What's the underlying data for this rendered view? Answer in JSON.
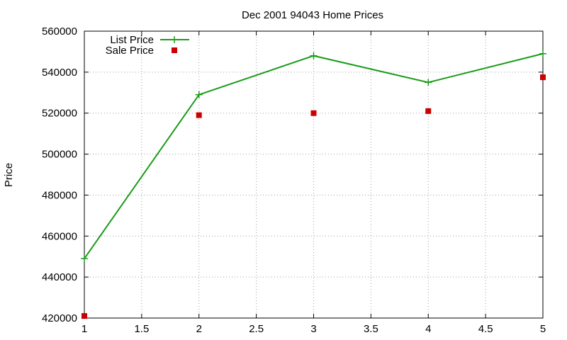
{
  "chart_data": {
    "type": "line",
    "title": "Dec 2001 94043 Home Prices",
    "xlabel": "",
    "ylabel": "Price",
    "xlim": [
      1,
      5
    ],
    "ylim": [
      420000,
      560000
    ],
    "x_ticks": [
      "1",
      "1.5",
      "2",
      "2.5",
      "3",
      "3.5",
      "4",
      "4.5",
      "5"
    ],
    "y_ticks": [
      "420000",
      "440000",
      "460000",
      "480000",
      "500000",
      "520000",
      "540000",
      "560000"
    ],
    "grid": true,
    "legend_position": "top-left",
    "series": [
      {
        "name": "List Price",
        "style": "line+plus",
        "color": "#1a9c1a",
        "x": [
          1,
          2,
          3,
          4,
          5
        ],
        "values": [
          449000,
          529000,
          548000,
          535000,
          549000
        ]
      },
      {
        "name": "Sale Price",
        "style": "square",
        "color": "#cc0000",
        "x": [
          1,
          2,
          3,
          4,
          5
        ],
        "values": [
          421000,
          519000,
          520000,
          521000,
          537500
        ]
      }
    ]
  }
}
